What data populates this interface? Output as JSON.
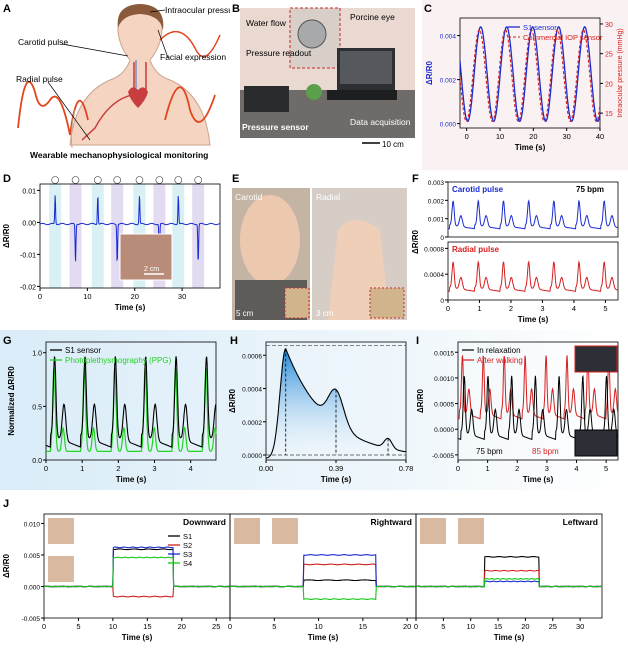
{
  "panels": {
    "A": {
      "label": "A",
      "caption": "Wearable mechanophysiological monitoring",
      "items": [
        "Intraocular pressure",
        "Carotid  pulse",
        "Facial expression",
        "Radial pulse"
      ]
    },
    "B": {
      "label": "B",
      "items": [
        "Water flow",
        "Porcine eye",
        "Pressure readout",
        "Pressure sensor",
        "Data acquisition"
      ],
      "scale": "10 cm"
    },
    "C": {
      "label": "C"
    },
    "D": {
      "label": "D",
      "scale": "2 cm"
    },
    "E": {
      "label": "E",
      "left": "Carotid",
      "right": "Radial",
      "scale_left": "5 cm",
      "scale_right": "3 cm"
    },
    "F": {
      "label": "F"
    },
    "G": {
      "label": "G"
    },
    "H": {
      "label": "H"
    },
    "I": {
      "label": "I"
    },
    "J": {
      "label": "J",
      "titles": [
        "Downward",
        "Rightward",
        "Leftward"
      ]
    }
  },
  "chart_data": [
    {
      "id": "C",
      "type": "line",
      "xlabel": "Time (s)",
      "ylabel": "ΔR/R0",
      "y2label": "Intraocular pressure (mmHg)",
      "xlim": [
        -2,
        40
      ],
      "ylim": [
        -0.0002,
        0.0048
      ],
      "y2lim": [
        12.5,
        31
      ],
      "xticks": [
        "0",
        "10",
        "20",
        "30",
        "40"
      ],
      "yticks": [
        "0.000",
        "0.002",
        "0.004"
      ],
      "y2ticks": [
        "15",
        "20",
        "25",
        "30"
      ],
      "series": [
        {
          "name": "S1 sensor",
          "period": 7.8,
          "phase": 0.3
        },
        {
          "name": "Commercial IOP sensor",
          "period": 7.8,
          "phase": 0.3
        }
      ],
      "legend": "top-right"
    },
    {
      "id": "D",
      "type": "line",
      "xlabel": "Time (s)",
      "ylabel": "ΔR/R0",
      "xlim": [
        0,
        38
      ],
      "ylim": [
        -0.0205,
        0.012
      ],
      "xticks": [
        "0",
        "10",
        "20",
        "30"
      ],
      "yticks": [
        "-0.02",
        "-0.01",
        "0.00",
        "0.01"
      ],
      "spike_times": [
        3.2,
        7.5,
        12.2,
        16.3,
        21.0,
        25.2,
        29.2,
        33.4
      ],
      "spike_dirs": [
        1,
        -1,
        1,
        -1,
        1,
        -1,
        1,
        -1
      ]
    },
    {
      "id": "F",
      "type": "line",
      "xlabel": "Time (s)",
      "ylabel": "ΔR/R0",
      "xlim": [
        0,
        5.4
      ],
      "xticks": [
        "0",
        "1",
        "2",
        "3",
        "4",
        "5"
      ],
      "series": [
        {
          "name": "Carotid pulse",
          "yticks": [
            "0",
            "0.001",
            "0.002",
            "0.003"
          ],
          "ylim": [
            0,
            0.003
          ]
        },
        {
          "name": "Radial pulse",
          "yticks": [
            "0",
            "0.0004",
            "0.0008"
          ],
          "ylim": [
            0,
            0.0009
          ]
        }
      ],
      "annotation": "75 bpm"
    },
    {
      "id": "G",
      "type": "line",
      "xlabel": "Time (s)",
      "ylabel": "Normalized ΔR/R0",
      "xlim": [
        0,
        4.7
      ],
      "ylim": [
        0,
        1.1
      ],
      "xticks": [
        "0",
        "1",
        "2",
        "3",
        "4"
      ],
      "yticks": [
        "0.0",
        "0.5",
        "1.0"
      ],
      "series": [
        {
          "name": "S1 sensor"
        },
        {
          "name": "Photoplethysmography (PPG)"
        }
      ],
      "legend": "top-left"
    },
    {
      "id": "H",
      "type": "line",
      "xlabel": "Time (s)",
      "ylabel": "ΔR/R0",
      "xlim": [
        0,
        0.78
      ],
      "ylim": [
        -3e-05,
        0.00068
      ],
      "xticks": [
        "0.00",
        "0.39",
        "0.78"
      ],
      "yticks": [
        "0.0000",
        "0.0002",
        "0.0004",
        "0.0006"
      ],
      "annotations": [
        "P",
        "Systolic",
        "P",
        "1",
        "P",
        "2",
        "P",
        "3",
        "P",
        "diastolic"
      ]
    },
    {
      "id": "I",
      "type": "line",
      "xlabel": "Time (s)",
      "ylabel": "ΔR/R0",
      "xlim": [
        0,
        5.4
      ],
      "ylim": [
        -0.0006,
        0.0017
      ],
      "xticks": [
        "0",
        "1",
        "2",
        "3",
        "4",
        "5"
      ],
      "yticks": [
        "-0.0005",
        "0.0000",
        "0.0005",
        "0.0010",
        "0.0015"
      ],
      "series": [
        {
          "name": "In relaxation",
          "bpm": "75 bpm"
        },
        {
          "name": "After walking",
          "bpm": "85 bpm"
        }
      ],
      "legend": "top-left"
    },
    {
      "id": "J",
      "type": "line",
      "xlabel": "Time (s)",
      "ylabel": "ΔR/R0",
      "ylim": [
        -0.005,
        0.0115
      ],
      "yticks": [
        "-0.005",
        "0.000",
        "0.005",
        "0.010"
      ],
      "subplots": [
        {
          "title": "Downward",
          "xticks": [
            "0",
            "5",
            "10",
            "15",
            "20",
            "25"
          ],
          "xmax": 27,
          "step": [
            10,
            18.8
          ],
          "levels": [
            0.0059,
            -0.0016,
            0.0062,
            0.0046
          ]
        },
        {
          "title": "Rightward",
          "xticks": [
            "0",
            "5",
            "10",
            "15",
            "20"
          ],
          "xmax": 21,
          "step": [
            8.3,
            16.5
          ],
          "levels": [
            0.001,
            0.0035,
            0.005,
            -0.002
          ]
        },
        {
          "title": "Leftward",
          "xticks": [
            "0",
            "5",
            "10",
            "15",
            "20",
            "25",
            "30"
          ],
          "xmax": 34,
          "step": [
            12.5,
            22.5
          ],
          "levels": [
            0.0047,
            0.0025,
            0.0008,
            0.0012
          ]
        }
      ],
      "series": [
        {
          "name": "S1",
          "color": "#000000"
        },
        {
          "name": "S2",
          "color": "#d62020"
        },
        {
          "name": "S3",
          "color": "#1a2bd0"
        },
        {
          "name": "S4",
          "color": "#14c814"
        }
      ]
    }
  ]
}
